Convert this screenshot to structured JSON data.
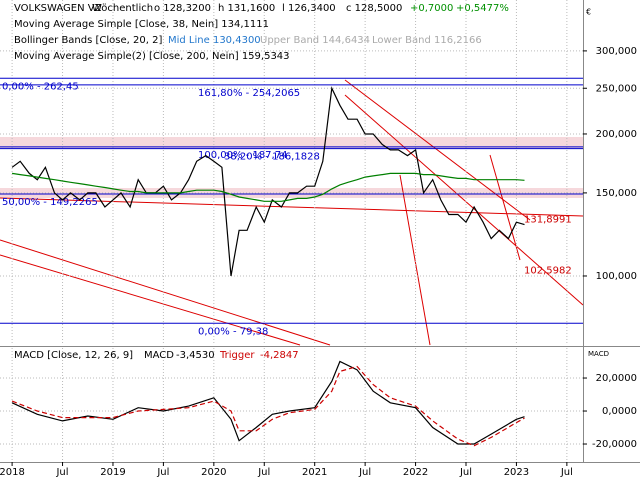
{
  "chart_data": [
    {
      "type": "line",
      "log_scale": true,
      "grid": true,
      "title": "VOLKSWAGEN VZ",
      "subtitle": "Wöchentlich",
      "ohlc_texts": [
        "o 128,3200",
        "h 131,1600",
        "l 126,3400",
        "c 128,5000",
        "+0,7000",
        "+0,5477%"
      ],
      "legend": [
        "Moving Average Simple  [Close, 38, Nein]  134,1111",
        "Bollinger Bands  [Close, 20, 2]",
        "Mid Line 130,4300",
        "Upper Band 144,6434",
        "Lower Band 116,2166",
        "Moving Average Simple(2)  [Close, 200, Nein]  159,5343"
      ],
      "currency": "€",
      "x": [
        2018.0,
        2018.08,
        2018.17,
        2018.25,
        2018.33,
        2018.42,
        2018.5,
        2018.58,
        2018.67,
        2018.75,
        2018.83,
        2018.92,
        2019.0,
        2019.08,
        2019.17,
        2019.25,
        2019.33,
        2019.42,
        2019.5,
        2019.58,
        2019.67,
        2019.75,
        2019.83,
        2019.92,
        2020.0,
        2020.08,
        2020.17,
        2020.25,
        2020.33,
        2020.42,
        2020.5,
        2020.58,
        2020.67,
        2020.75,
        2020.83,
        2020.92,
        2021.0,
        2021.08,
        2021.17,
        2021.25,
        2021.33,
        2021.42,
        2021.5,
        2021.58,
        2021.67,
        2021.75,
        2021.83,
        2021.92,
        2022.0,
        2022.08,
        2022.17,
        2022.25,
        2022.33,
        2022.42,
        2022.5,
        2022.58,
        2022.67,
        2022.75,
        2022.83,
        2022.92,
        2023.0,
        2023.08
      ],
      "series": [
        {
          "name": "Close",
          "color": "#000000",
          "values": [
            170,
            175,
            165,
            160,
            170,
            150,
            145,
            150,
            145,
            150,
            150,
            140,
            145,
            150,
            140,
            160,
            150,
            150,
            155,
            145,
            150,
            160,
            175,
            180,
            175,
            170,
            100,
            125,
            125,
            140,
            130,
            145,
            140,
            150,
            150,
            155,
            155,
            175,
            250,
            230,
            215,
            215,
            200,
            200,
            190,
            185,
            185,
            180,
            185,
            150,
            160,
            145,
            135,
            135,
            130,
            140,
            130,
            120,
            125,
            120,
            130,
            128.5
          ]
        },
        {
          "name": "MA200",
          "color": "#008000",
          "values": [
            165,
            164,
            163,
            162,
            161,
            160,
            159,
            158,
            157,
            156,
            155,
            154,
            153,
            152,
            151,
            151,
            150,
            150,
            150,
            150,
            150,
            151,
            152,
            152,
            152,
            151,
            149,
            147,
            146,
            145,
            144,
            144,
            144,
            145,
            146,
            146,
            147,
            149,
            153,
            156,
            158,
            160,
            162,
            163,
            164,
            165,
            165,
            165,
            165,
            164,
            164,
            163,
            162,
            161,
            161,
            160,
            160,
            160,
            160,
            160,
            160,
            159.5343
          ]
        }
      ],
      "ylim": [
        71.4,
        384.6
      ],
      "yticks": [
        {
          "value": 100,
          "label": "100,000"
        },
        {
          "value": 150,
          "label": "150,000"
        },
        {
          "value": 200,
          "label": "200,000"
        },
        {
          "value": 250,
          "label": "250,000"
        },
        {
          "value": 300,
          "label": "300,000"
        }
      ],
      "xlim": [
        2017.88,
        2023.66
      ],
      "levels": [
        {
          "value": 262.45,
          "label": "0,00% - 262,45",
          "color": "#0000cc"
        },
        {
          "value": 254.2065,
          "label": "161,80% - 254,2065",
          "color": "#0000cc"
        },
        {
          "value": 187.74,
          "label": "100,00% - 187,74",
          "color": "#0000cc"
        },
        {
          "value": 186.1828,
          "label": "38,20% - 186,1828",
          "color": "#0000cc"
        },
        {
          "value": 149.2265,
          "label": "50,00% - 149,2265",
          "color": "#0000cc"
        },
        {
          "value": 79.38,
          "label": "0,00% - 79,38",
          "color": "#0000cc"
        }
      ],
      "annotations": [
        {
          "value": 131.8991,
          "label": "131,8991"
        },
        {
          "value": 102.5982,
          "label": "102,5982"
        }
      ]
    },
    {
      "type": "line",
      "grid": true,
      "title": "MACD  [Close, 12, 26, 9]",
      "axis_label": "MACD",
      "x": [
        2018.0,
        2018.25,
        2018.5,
        2018.75,
        2019.0,
        2019.25,
        2019.5,
        2019.75,
        2020.0,
        2020.17,
        2020.25,
        2020.42,
        2020.58,
        2020.75,
        2021.0,
        2021.17,
        2021.25,
        2021.42,
        2021.58,
        2021.75,
        2022.0,
        2022.17,
        2022.42,
        2022.58,
        2022.75,
        2023.0,
        2023.08
      ],
      "series": [
        {
          "name": "MACD",
          "value_label": "-3,4530",
          "color": "#000000",
          "values": [
            5,
            -2,
            -6,
            -3,
            -5,
            2,
            0,
            3,
            8,
            -5,
            -18,
            -10,
            -2,
            0,
            2,
            18,
            30,
            25,
            12,
            5,
            2,
            -10,
            -20,
            -20,
            -14,
            -5,
            -3.453
          ]
        },
        {
          "name": "Trigger",
          "value_label": "-4,2847",
          "color": "#cc0000",
          "values": [
            6,
            0,
            -4,
            -4,
            -4,
            0,
            1,
            2,
            6,
            0,
            -12,
            -12,
            -5,
            -1,
            1,
            12,
            24,
            27,
            16,
            8,
            3,
            -6,
            -17,
            -21,
            -16,
            -7,
            -4.2847
          ]
        }
      ],
      "ylim": [
        -30.9,
        38.2
      ],
      "yticks": [
        {
          "value": -20,
          "label": "-20,0000"
        },
        {
          "value": 0,
          "label": "0,0000"
        },
        {
          "value": 20,
          "label": "20,0000"
        }
      ],
      "xlim": [
        2017.88,
        2023.66
      ],
      "xticks": [
        {
          "value": 2018,
          "label": "2018"
        },
        {
          "value": 2018.5,
          "label": "Jul"
        },
        {
          "value": 2019,
          "label": "2019"
        },
        {
          "value": 2019.5,
          "label": "Jul"
        },
        {
          "value": 2020,
          "label": "2020"
        },
        {
          "value": 2020.5,
          "label": "Jul"
        },
        {
          "value": 2021,
          "label": "2021"
        },
        {
          "value": 2021.5,
          "label": "Jul"
        },
        {
          "value": 2022,
          "label": "2022"
        },
        {
          "value": 2022.5,
          "label": "Jul"
        },
        {
          "value": 2023,
          "label": "2023"
        },
        {
          "value": 2023.5,
          "label": "Jul"
        }
      ]
    }
  ]
}
